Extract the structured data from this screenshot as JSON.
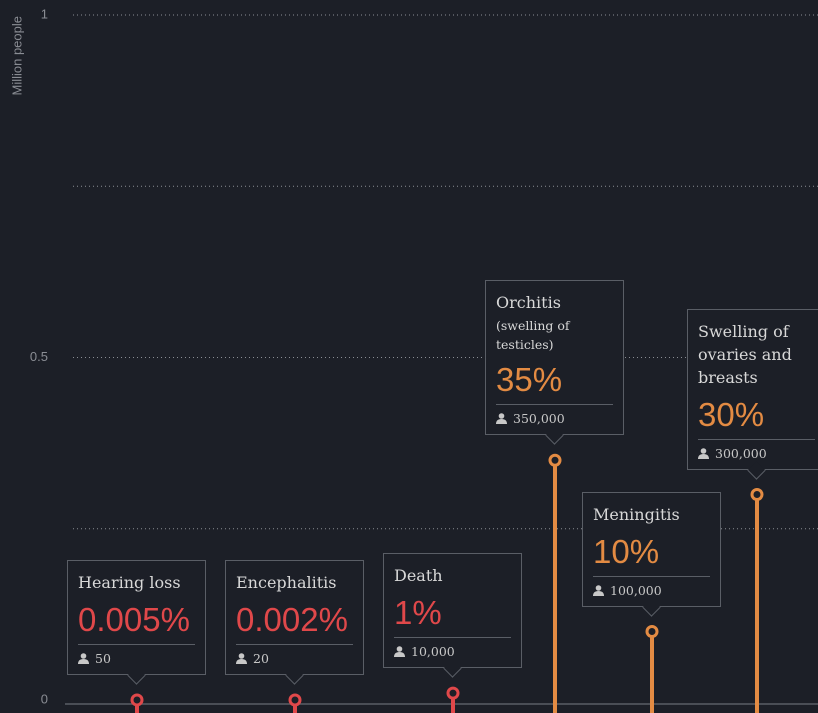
{
  "chart_data": {
    "type": "lollipop",
    "y_axis_label": "Million people",
    "categories": [
      "Hearing loss",
      "Encephalitis",
      "Death",
      "Orchitis",
      "Meningitis",
      "Swelling of ovaries and breasts"
    ],
    "notes": [
      null,
      null,
      null,
      "(swelling of testicles)",
      null,
      null
    ],
    "values": [
      5e-05,
      2e-05,
      0.01,
      0.35,
      0.1,
      0.3
    ],
    "value_labels": [
      "50",
      "20",
      "10,000",
      "350,000",
      "100,000",
      "300,000"
    ],
    "percent_labels": [
      "0.005%",
      "0.002%",
      "1%",
      "35%",
      "10%",
      "30%"
    ],
    "colors": [
      "#e0484a",
      "#e0484a",
      "#e0484a",
      "#e38b43",
      "#e38b43",
      "#e38b43"
    ],
    "ylim": [
      0,
      1
    ],
    "yticks": [
      0,
      0.5,
      1
    ],
    "minor_gridlines": [
      0.25,
      0.75
    ],
    "grid": true
  }
}
